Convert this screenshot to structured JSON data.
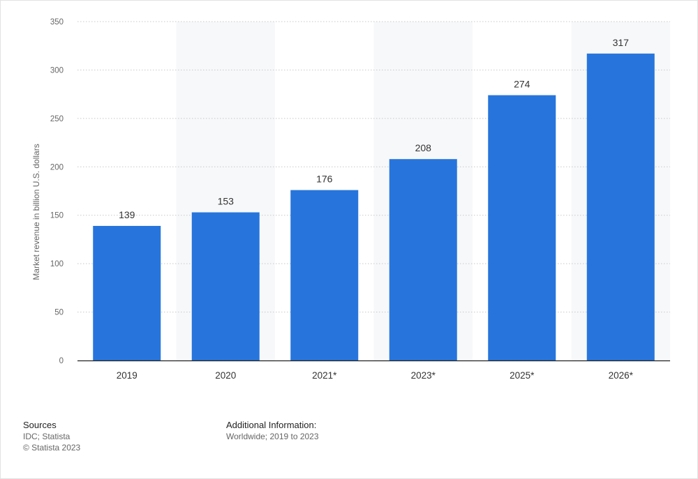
{
  "chart_data": {
    "type": "bar",
    "categories": [
      "2019",
      "2020",
      "2021*",
      "2023*",
      "2025*",
      "2026*"
    ],
    "values": [
      139,
      153,
      176,
      208,
      274,
      317
    ],
    "value_labels": [
      "139",
      "153",
      "176",
      "208",
      "274",
      "317"
    ],
    "ylabel": "Market revenue in billion U.S. dollars",
    "ylim": [
      0,
      350
    ],
    "yticks": [
      0,
      50,
      100,
      150,
      200,
      250,
      300,
      350
    ],
    "ytick_labels": [
      "0",
      "50",
      "100",
      "150",
      "200",
      "250",
      "300",
      "350"
    ],
    "grid": true,
    "bar_color": "#2775dc",
    "grid_color": "#c8c8c8",
    "alt_band_color": "#f7f8fa"
  },
  "footer": {
    "sources_heading": "Sources",
    "sources_lines": [
      "IDC; Statista",
      "© Statista 2023"
    ],
    "additional_heading": "Additional Information:",
    "additional_text": "Worldwide; 2019 to 2023"
  }
}
